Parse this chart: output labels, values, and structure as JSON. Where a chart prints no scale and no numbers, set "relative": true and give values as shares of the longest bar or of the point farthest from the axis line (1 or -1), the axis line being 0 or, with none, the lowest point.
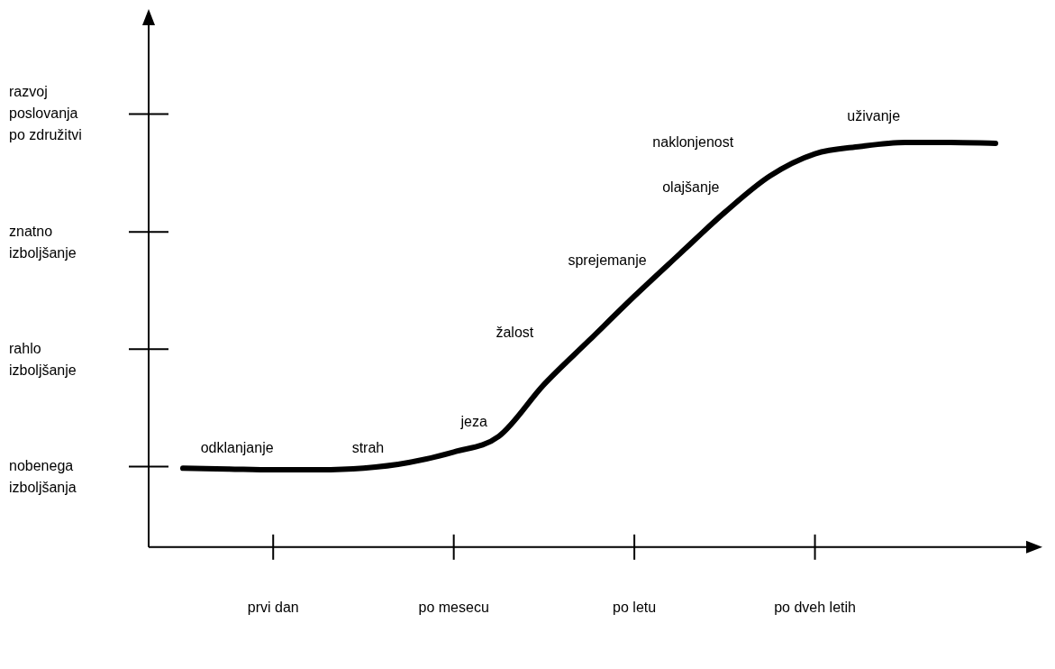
{
  "chart_data": {
    "type": "line",
    "relative": true,
    "categories": [
      null,
      null,
      "prvi dan",
      null,
      null,
      null,
      "po mesecu",
      null,
      null,
      null,
      "po letu",
      null,
      null,
      null,
      "po dveh letih",
      null,
      null,
      null,
      null
    ],
    "series": [
      {
        "color": "#000000",
        "values": [
          0.195,
          0.193,
          0.191,
          0.191,
          0.195,
          0.209,
          0.235,
          0.274,
          0.402,
          0.511,
          0.62,
          0.724,
          0.827,
          0.917,
          0.972,
          0.99,
          1,
          1,
          0.998
        ]
      }
    ],
    "annotations": [
      "nobenega\nizboljšanja",
      "rahlo\nizboljšanje",
      "znatno\nizboljšanje",
      "razvoj\nposlovanja\npo združitvi",
      "odklanjanje",
      "strah",
      "jeza",
      "žalost",
      "sprejemanje",
      "olajšanje",
      "naklonjenost",
      "uživanje"
    ],
    "grid": false,
    "legend": false,
    "marker": "none",
    "line_style": "solid"
  }
}
